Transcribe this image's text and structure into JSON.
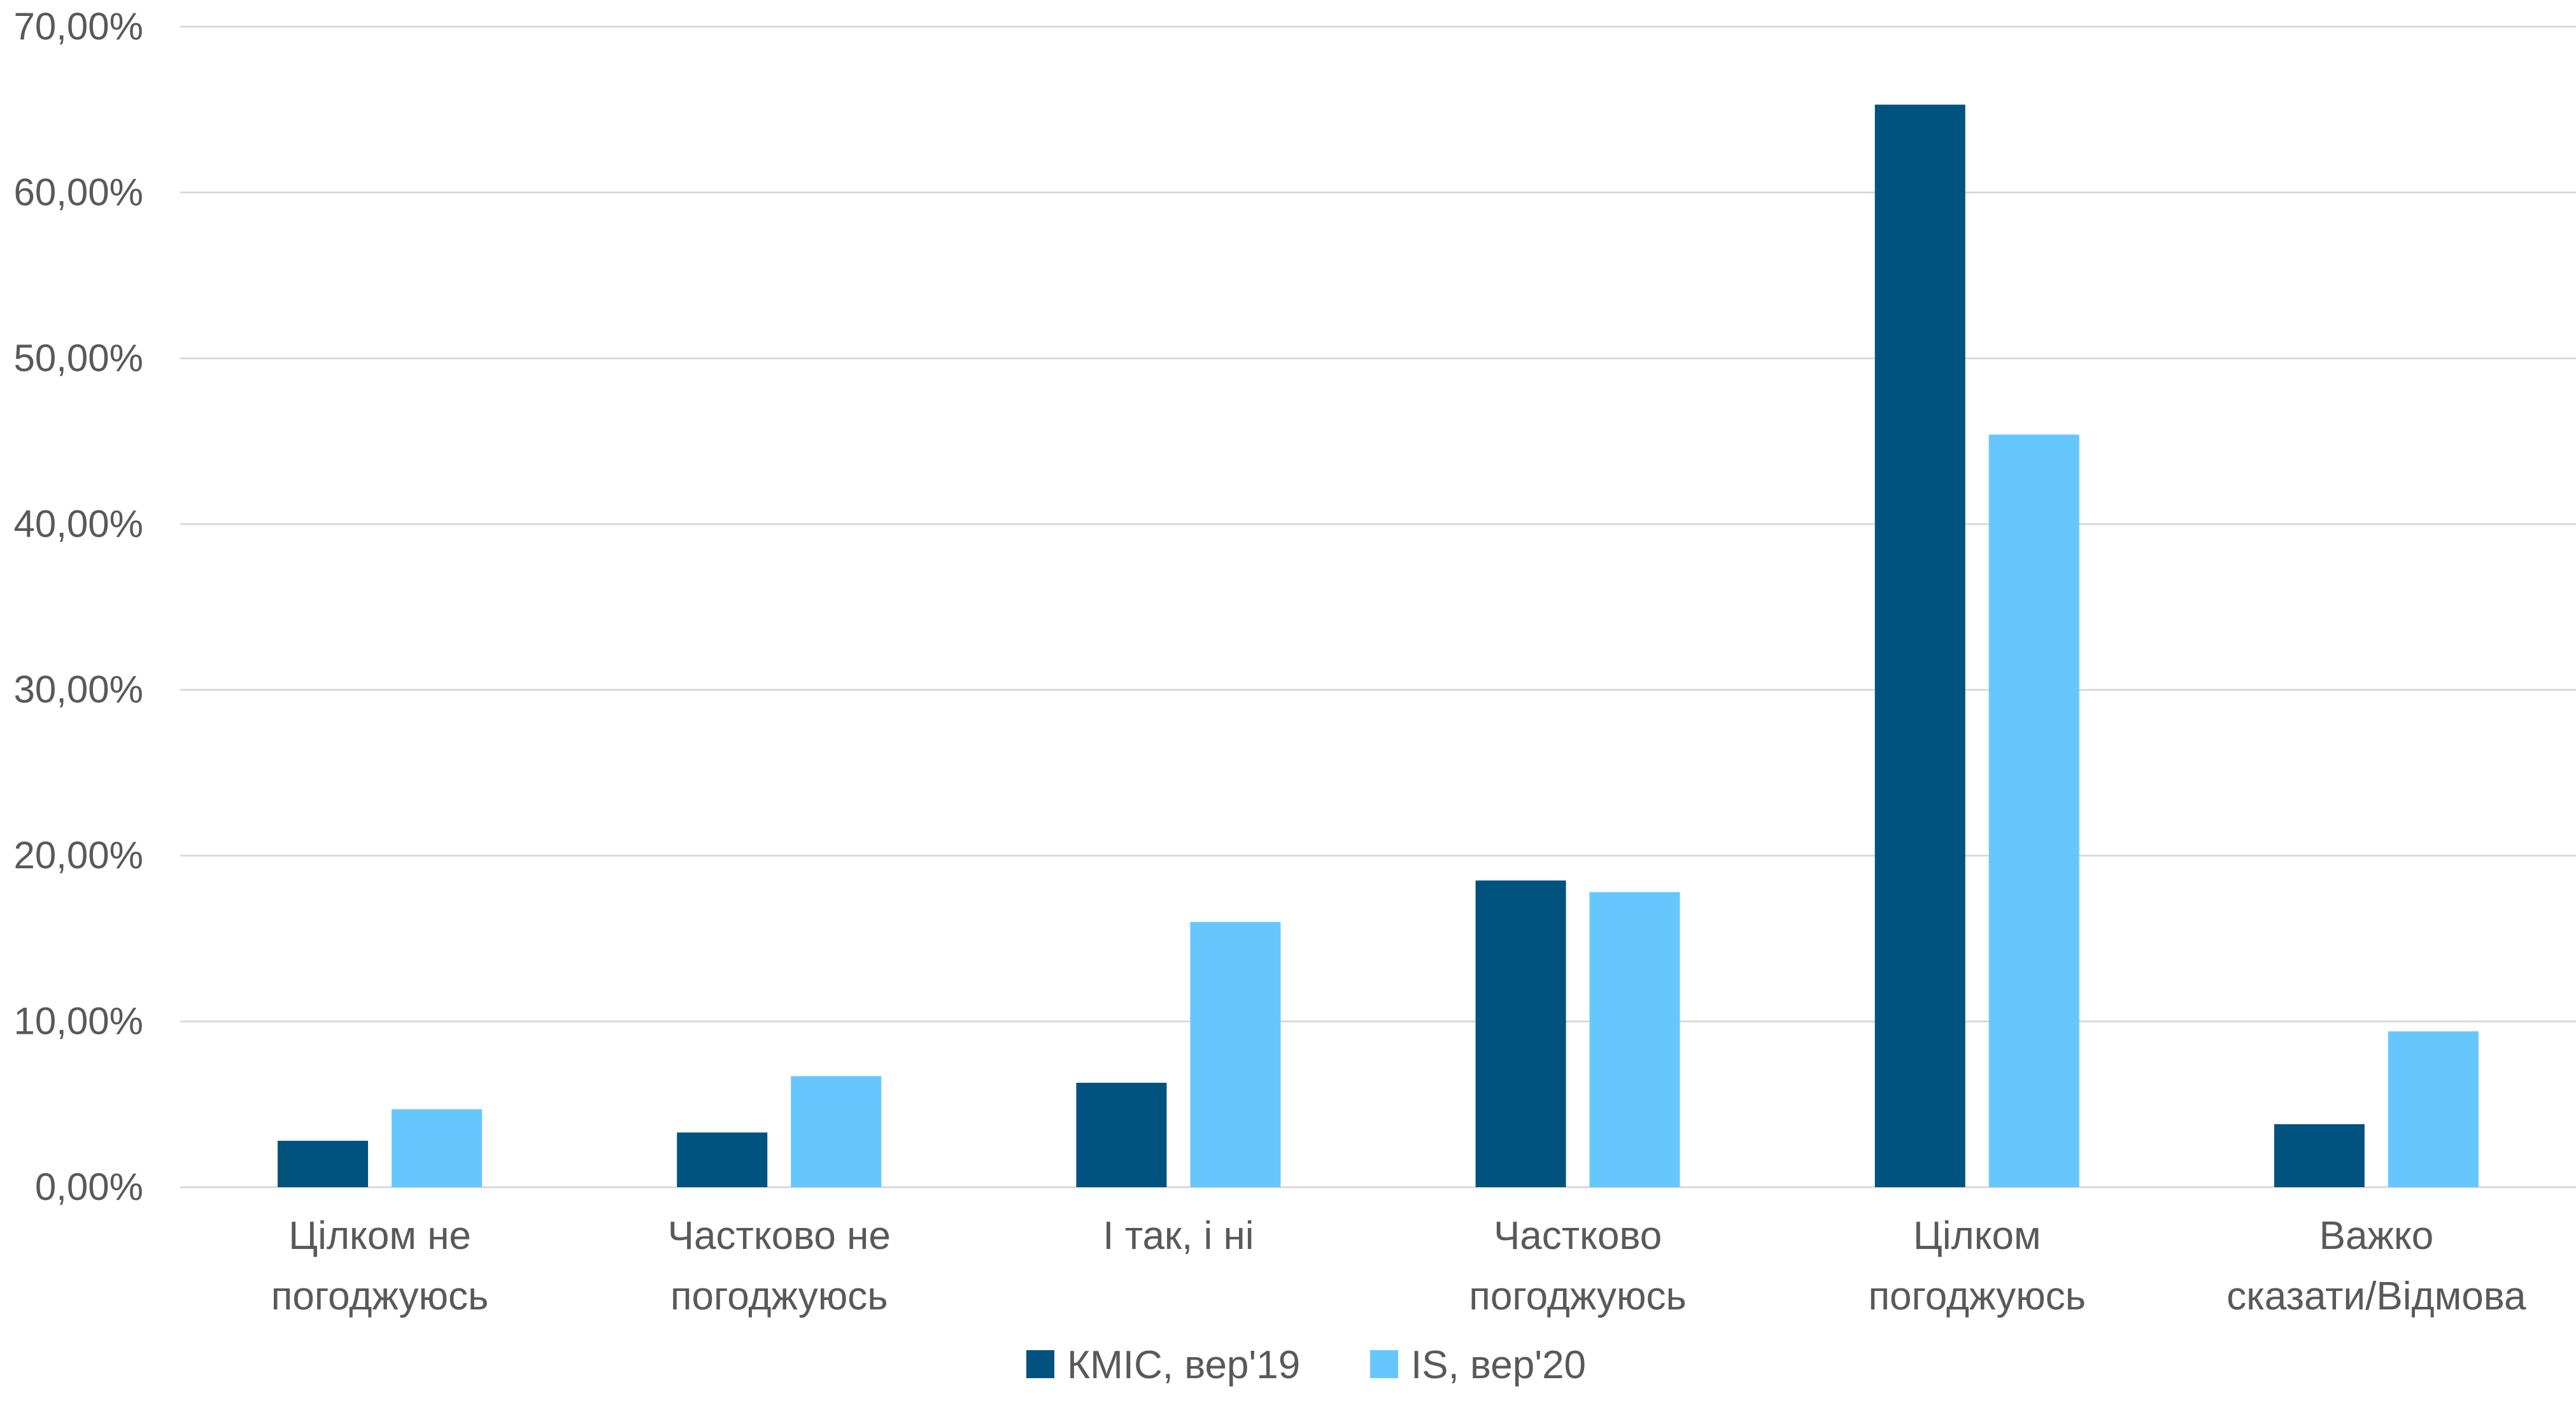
{
  "chart_data": {
    "type": "bar",
    "categories": [
      [
        "Цілком не",
        "погоджуюсь"
      ],
      [
        "Частково не",
        "погоджуюсь"
      ],
      [
        "І так, і ні"
      ],
      [
        "Частково",
        "погоджуюсь"
      ],
      [
        "Цілком",
        "погоджуюсь"
      ],
      [
        "Важко",
        "сказати/Відмова"
      ]
    ],
    "series": [
      {
        "name": "КМІС, вер'19",
        "color": "#00527f",
        "values": [
          2.8,
          3.3,
          6.3,
          18.5,
          65.3,
          3.8
        ]
      },
      {
        "name": "IS, вер'20",
        "color": "#66c7ff",
        "values": [
          4.7,
          6.7,
          16.0,
          17.8,
          45.4,
          9.4
        ]
      }
    ],
    "ylim": [
      0,
      70
    ],
    "yticks": [
      "0,00%",
      "10,00%",
      "20,00%",
      "30,00%",
      "40,00%",
      "50,00%",
      "60,00%",
      "70,00%"
    ],
    "grid": true,
    "legend": "bottom",
    "title": "",
    "xlabel": "",
    "ylabel": ""
  }
}
